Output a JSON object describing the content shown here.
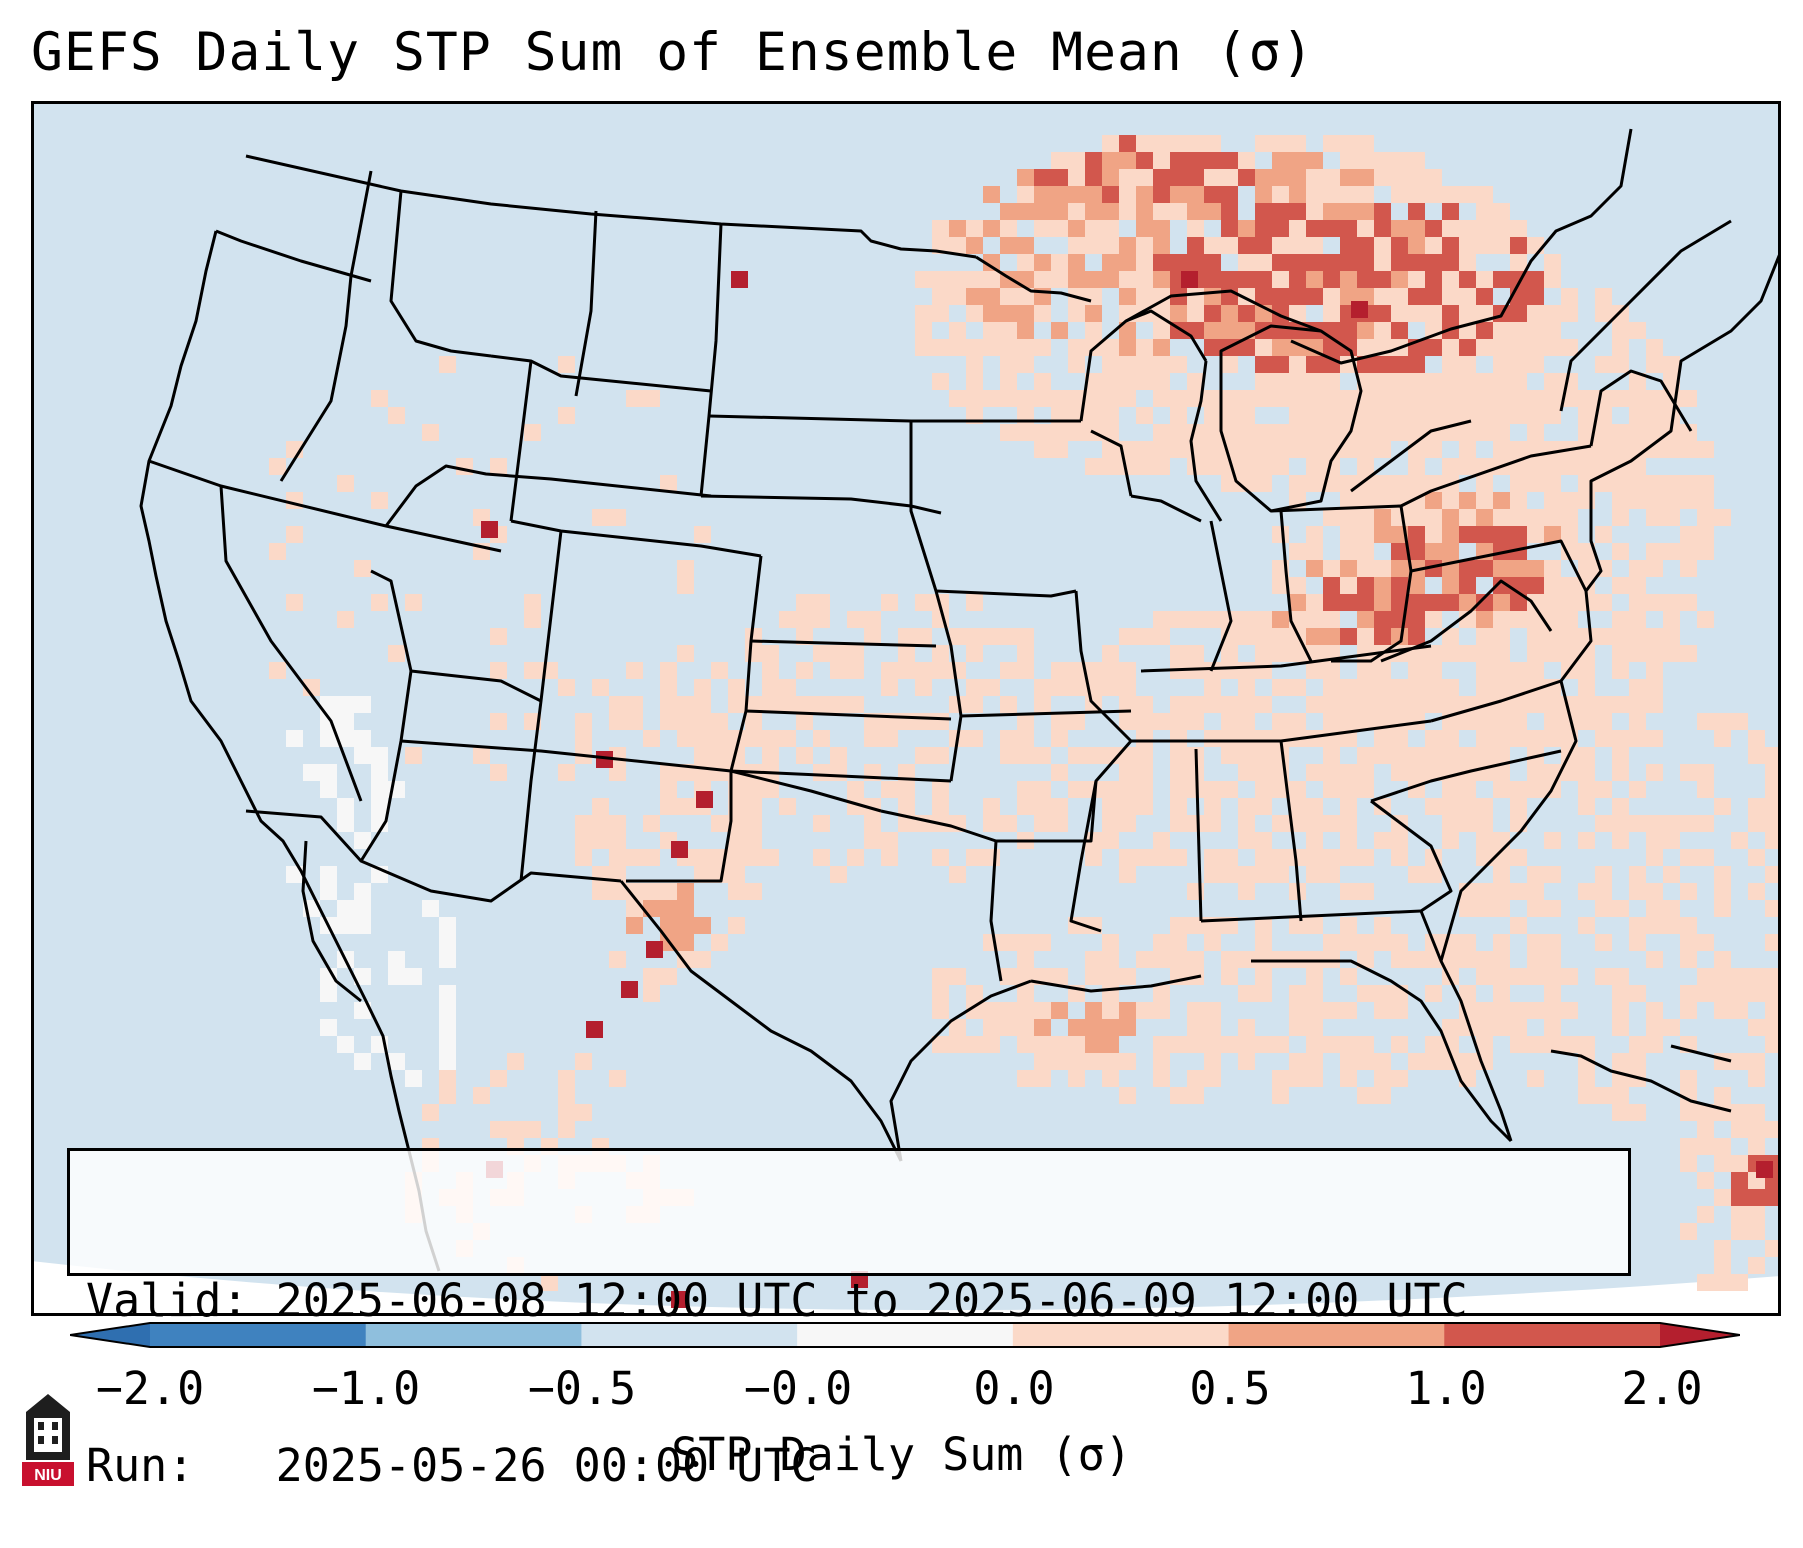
{
  "title": "GEFS Daily STP Sum of Ensemble Mean (σ)",
  "info": {
    "valid_label": "Valid:",
    "valid_value": "2025-06-08 12:00 UTC to 2025-06-09 12:00 UTC",
    "run_label": "Run:",
    "run_value": "2025-05-26 00:00 UTC"
  },
  "colorbar": {
    "label": "STP Daily Sum (σ)",
    "ticks": [
      "−2.0",
      "−1.0",
      "−0.5",
      "−0.0",
      "0.0",
      "0.5",
      "1.0",
      "2.0"
    ],
    "bins": [
      {
        "range": "-2.0 to -1.0",
        "color": "#3f82bf"
      },
      {
        "range": "-1.0 to -0.5",
        "color": "#8fbfdd"
      },
      {
        "range": "-0.5 to -0.0",
        "color": "#d2e3ef"
      },
      {
        "range": "-0.0 to 0.0",
        "color": "#f7f7f7"
      },
      {
        "range": "0.0 to 0.5",
        "color": "#fbd9c8"
      },
      {
        "range": "0.5 to 1.0",
        "color": "#f0a485"
      },
      {
        "range": "1.0 to 2.0",
        "color": "#d2574d"
      }
    ],
    "under_color": "#2f6fb0",
    "over_color": "#b41f2e"
  },
  "map": {
    "background_color": "#d2e3ef",
    "regions": [
      {
        "name": "great-lakes-ontario-quebec",
        "level": "1.0 to 2.0"
      },
      {
        "name": "pennsylvania-ohio-virginia",
        "level": "1.0 to 2.0"
      },
      {
        "name": "upper-midwest-northeast",
        "level": "0.0 to 0.5"
      },
      {
        "name": "southeast-gulf-coast",
        "level": "0.0 to 0.5"
      },
      {
        "name": "southern-plains",
        "level": "0.0 to 0.5"
      },
      {
        "name": "west-texas-new-mexico",
        "level": "above 2.0"
      },
      {
        "name": "atlantic-band",
        "level": "0.0 to 0.5"
      },
      {
        "name": "baja-sonora",
        "level": "-0.0 to 0.0"
      }
    ]
  },
  "logo": {
    "text": "NIU"
  }
}
